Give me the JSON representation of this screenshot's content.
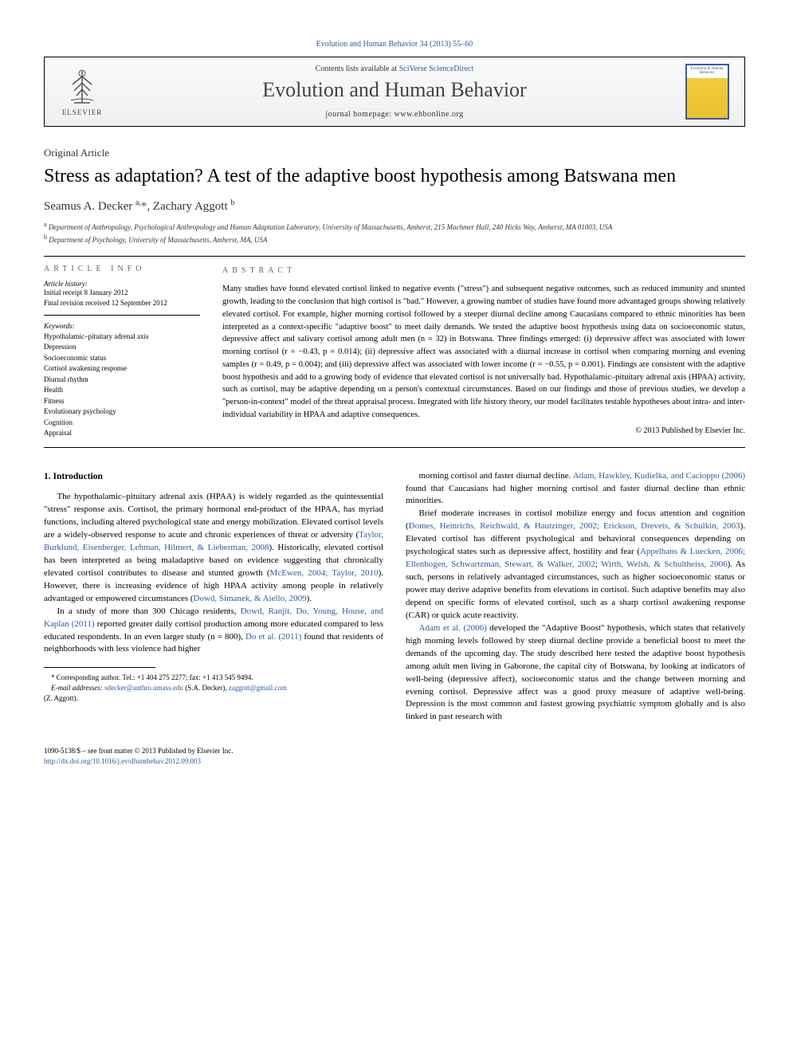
{
  "header": {
    "top_link": "Evolution and Human Behavior 34 (2013) 55–60",
    "contents_text": "Contents lists available at ",
    "contents_link": "SciVerse ScienceDirect",
    "journal_name": "Evolution and Human Behavior",
    "homepage_text": "journal homepage: www.ehbonline.org",
    "publisher": "ELSEVIER",
    "cover_title": "Evolution & Human Behavior"
  },
  "article": {
    "type": "Original Article",
    "title": "Stress as adaptation? A test of the adaptive boost hypothesis among Batswana men",
    "authors_html": "Seamus A. Decker <sup>a,</sup><span class=\"author-link\">*</span>, Zachary Aggott <sup>b</sup>",
    "affiliations": {
      "a": "Department of Anthropology, Psychological Anthropology and Human Adaptation Laboratory, University of Massachusetts, Amherst, 215 Machmer Hall, 240 Hicks Way, Amherst, MA 01003, USA",
      "b": "Department of Psychology, University of Massachusetts, Amherst, MA, USA"
    }
  },
  "info": {
    "section_label": "ARTICLE INFO",
    "history_label": "Article history:",
    "history_lines": [
      "Initial receipt 8 January 2012",
      "Final revision received 12 September 2012"
    ],
    "keywords_label": "Keywords:",
    "keywords": [
      "Hypothalamic–pituitary adrenal axis",
      "Depression",
      "Socioeconomic status",
      "Cortisol awakening response",
      "Diurnal rhythm",
      "Health",
      "Fitness",
      "Evolutionary psychology",
      "Cognition",
      "Appraisal"
    ]
  },
  "abstract": {
    "section_label": "ABSTRACT",
    "text": "Many studies have found elevated cortisol linked to negative events (\"stress\") and subsequent negative outcomes, such as reduced immunity and stunted growth, leading to the conclusion that high cortisol is \"bad.\" However, a growing number of studies have found more advantaged groups showing relatively elevated cortisol. For example, higher morning cortisol followed by a steeper diurnal decline among Caucasians compared to ethnic minorities has been interpreted as a context-specific \"adaptive boost\" to meet daily demands. We tested the adaptive boost hypothesis using data on socioeconomic status, depressive affect and salivary cortisol among adult men (n = 32) in Botswana. Three findings emerged: (i) depressive affect was associated with lower morning cortisol (r = −0.43, p = 0.014); (ii) depressive affect was associated with a diurnal increase in cortisol when comparing morning and evening samples (r = 0.49, p = 0.004); and (iii) depressive affect was associated with lower income (r = −0.55, p = 0.001). Findings are consistent with the adaptive boost hypothesis and add to a growing body of evidence that elevated cortisol is not universally bad. Hypothalamic–pituitary adrenal axis (HPAA) activity, such as cortisol, may be adaptive depending on a person's contextual circumstances. Based on our findings and those of previous studies, we develop a \"person-in-context\" model of the threat appraisal process. Integrated with life history theory, our model facilitates testable hypotheses about intra- and inter-individual variability in HPAA and adaptive consequences.",
    "copyright": "© 2013 Published by Elsevier Inc."
  },
  "body": {
    "heading1": "1. Introduction",
    "col1_paras": [
      "The hypothalamic–pituitary adrenal axis (HPAA) is widely regarded as the quintessential \"stress\" response axis. Cortisol, the primary hormonal end-product of the HPAA, has myriad functions, including altered psychological state and energy mobilization. Elevated cortisol levels are a widely-observed response to acute and chronic experiences of threat or adversity (<span class=\"cite\">Taylor, Burklund, Eisenberger, Lehman, Hilmert, & Lieberman, 2008</span>). Historically, elevated cortisol has been interpreted as being maladaptive based on evidence suggesting that chronically elevated cortisol contributes to disease and stunted growth (<span class=\"cite\">McEwen, 2004; Taylor, 2010</span>). However, there is increasing evidence of high HPAA activity among people in relatively advantaged or empowered circumstances (<span class=\"cite\">Dowd, Simanek, & Aiello, 2009</span>).",
      "In a study of more than 300 Chicago residents, <span class=\"cite\">Dowd, Ranjit, Do, Young, House, and Kaplan (2011)</span> reported greater daily cortisol production among more educated compared to less educated respondents. In an even larger study (n = 800), <span class=\"cite\">Do et al. (2011)</span> found that residents of neighborhoods with less violence had higher"
    ],
    "col2_paras": [
      "morning cortisol and faster diurnal decline. <span class=\"cite\">Adam, Hawkley, Kudielka, and Cacioppo (2006)</span> found that Caucasians had higher morning cortisol and faster diurnal decline than ethnic minorities.",
      "Brief moderate increases in cortisol mobilize energy and focus attention and cognition (<span class=\"cite\">Domes, Heinrichs, Reichwald, & Hautzinger, 2002; Erickson, Drevets, & Schulkin, 2003</span>). Elevated cortisol has different psychological and behavioral consequences depending on psychological states such as depressive affect, hostility and fear (<span class=\"cite\">Appelhans & Luecken, 2006; Ellenbogen, Schwartzman, Stewart, & Walker, 2002</span>; <span class=\"cite\">Wirth, Welsh, & Schultheiss, 2006</span>). As such, persons in relatively advantaged circumstances, such as higher socioeconomic status or power may derive adaptive benefits from elevations in cortisol. Such adaptive benefits may also depend on specific forms of elevated cortisol, such as a sharp cortisol awakening response (CAR) or quick acute reactivity.",
      "<span class=\"cite\">Adam et al. (2006)</span> developed the \"Adaptive Boost\" hypothesis, which states that relatively high morning levels followed by steep diurnal decline provide a beneficial boost to meet the demands of the upcoming day. The study described here tested the adaptive boost hypothesis among adult men living in Gaborone, the capital city of Botswana, by looking at indicators of well-being (depressive affect), socioeconomic status and the change between morning and evening cortisol. Depressive affect was a good proxy measure of adaptive well-being. Depression is the most common and fastest growing psychiatric symptom globally and is also linked in past research with"
    ]
  },
  "footnote": {
    "corr_label": "* Corresponding author. Tel.: +1 404 275 2277; fax: +1 413 545 9494.",
    "email_label": "E-mail addresses:",
    "email1": "sdecker@anthro.umass.edu",
    "email1_name": "(S.A. Decker),",
    "email2": "zaggott@gmail.com",
    "email2_name": "(Z. Aggott)."
  },
  "footer": {
    "issn": "1090-5138/$ – see front matter © 2013 Published by Elsevier Inc.",
    "doi": "http://dx.doi.org/10.1016/j.evolhumbehav.2012.09.003"
  },
  "colors": {
    "link": "#2d5a9e",
    "text": "#000000",
    "header_grad_top": "#fafafa",
    "header_grad_bot": "#f0f0f0",
    "cover_border": "#3a5aa0",
    "cover_bg_top": "#f5d040",
    "cover_bg_bot": "#e8c030"
  }
}
